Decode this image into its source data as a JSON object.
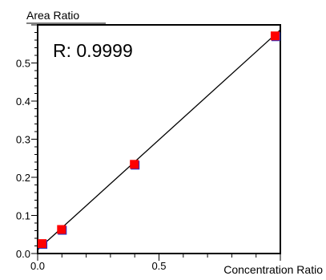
{
  "chart_data": {
    "type": "scatter",
    "title": "",
    "xlabel": "Concentration Ratio",
    "ylabel": "Area Ratio",
    "annotation": "R: 0.9999",
    "xlim": [
      0.0,
      1.0
    ],
    "ylim": [
      0.0,
      0.6
    ],
    "x_ticks": [
      {
        "value": 0.0,
        "label": "0.0"
      },
      {
        "value": 0.5,
        "label": "0.5"
      }
    ],
    "y_ticks": [
      {
        "value": 0.0,
        "label": "0.0"
      },
      {
        "value": 0.1,
        "label": "0.1"
      },
      {
        "value": 0.2,
        "label": "0.2"
      },
      {
        "value": 0.3,
        "label": "0.3"
      },
      {
        "value": 0.4,
        "label": "0.4"
      },
      {
        "value": 0.5,
        "label": "0.5"
      }
    ],
    "points": [
      {
        "x": 0.02,
        "y": 0.025
      },
      {
        "x": 0.1,
        "y": 0.062
      },
      {
        "x": 0.4,
        "y": 0.233
      },
      {
        "x": 0.98,
        "y": 0.57
      }
    ],
    "fit_line": {
      "x": [
        0.0,
        1.0
      ],
      "y": [
        0.01,
        0.587
      ]
    },
    "grid": false,
    "colors": {
      "marker_fill": "#ff0000",
      "marker_outline": "#2233cc",
      "line": "#000000"
    }
  }
}
